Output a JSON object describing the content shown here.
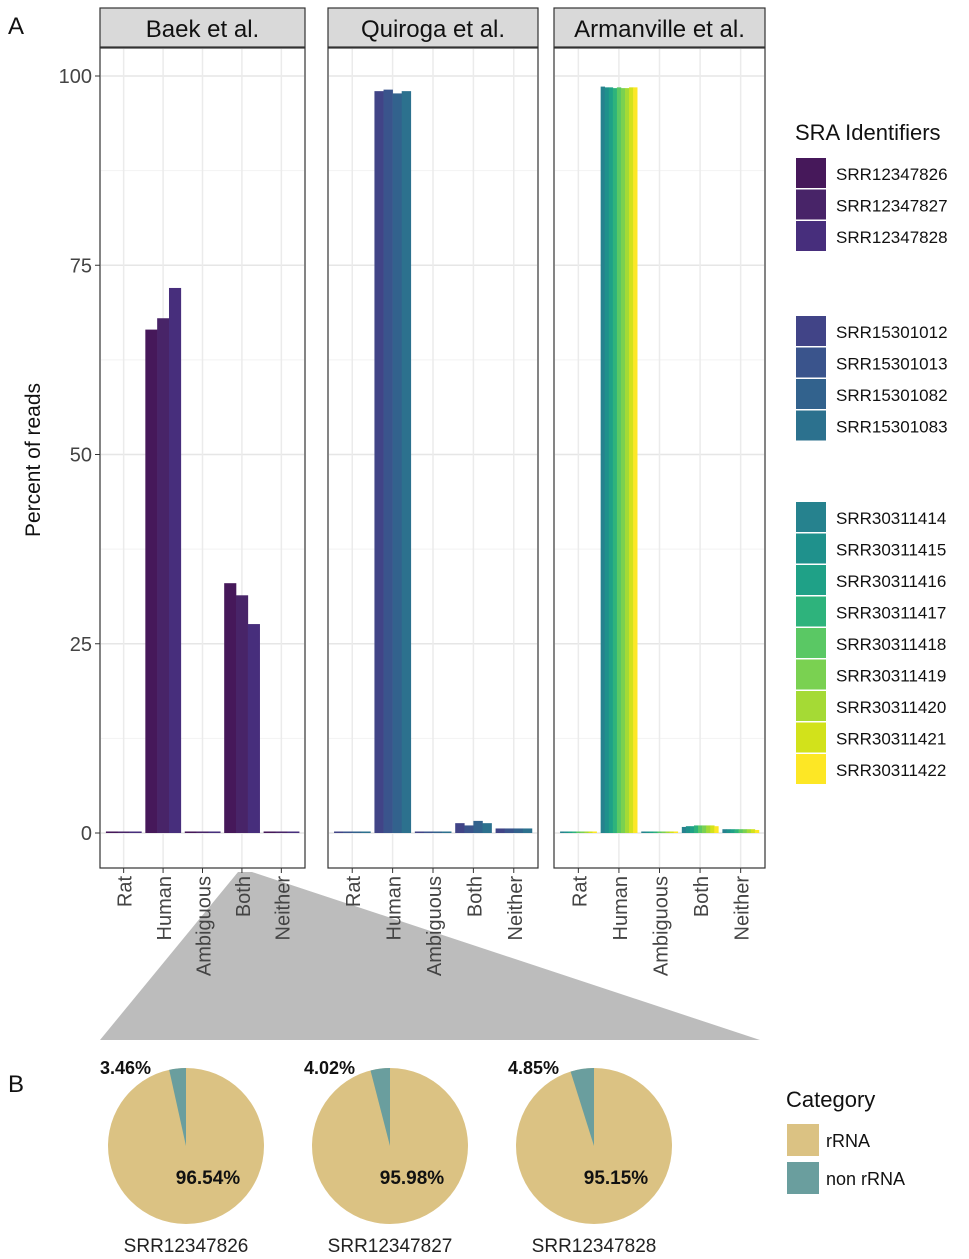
{
  "panel_labels": {
    "a": "A",
    "b": "B"
  },
  "chart_data": [
    {
      "type": "bar",
      "ylabel": "Percent of reads",
      "ylim": [
        0,
        100
      ],
      "yticks": [
        0,
        25,
        50,
        75,
        100
      ],
      "categories": [
        "Rat",
        "Human",
        "Ambiguous",
        "Both",
        "Neither"
      ],
      "grid": true,
      "legend": {
        "title": "SRA Identifiers",
        "placement": "right"
      },
      "facets": [
        {
          "title": "Baek et al.",
          "series": [
            {
              "name": "SRR12347826",
              "color": "#46185a",
              "values": [
                0.2,
                66.5,
                0.2,
                33.0,
                0.2
              ]
            },
            {
              "name": "SRR12347827",
              "color": "#482468",
              "values": [
                0.1,
                68.0,
                0.2,
                31.4,
                0.2
              ]
            },
            {
              "name": "SRR12347828",
              "color": "#472e7c",
              "values": [
                0.1,
                72.0,
                0.2,
                27.6,
                0.1
              ]
            }
          ]
        },
        {
          "title": "Quiroga et al.",
          "series": [
            {
              "name": "SRR15301012",
              "color": "#414487",
              "values": [
                0.1,
                98.0,
                0.1,
                1.3,
                0.6
              ]
            },
            {
              "name": "SRR15301013",
              "color": "#3a548c",
              "values": [
                0.1,
                98.2,
                0.1,
                1.0,
                0.6
              ]
            },
            {
              "name": "SRR15301082",
              "color": "#32628d",
              "values": [
                0.1,
                97.7,
                0.1,
                1.6,
                0.6
              ]
            },
            {
              "name": "SRR15301083",
              "color": "#2c718e",
              "values": [
                0.1,
                98.0,
                0.1,
                1.3,
                0.6
              ]
            }
          ]
        },
        {
          "title": "Armanville et al.",
          "series": [
            {
              "name": "SRR30311414",
              "color": "#26828e",
              "values": [
                0.1,
                98.6,
                0.1,
                0.8,
                0.5
              ]
            },
            {
              "name": "SRR30311415",
              "color": "#1f918c",
              "values": [
                0.1,
                98.5,
                0.1,
                0.9,
                0.5
              ]
            },
            {
              "name": "SRR30311416",
              "color": "#1fa187",
              "values": [
                0.1,
                98.5,
                0.1,
                0.9,
                0.5
              ]
            },
            {
              "name": "SRR30311417",
              "color": "#2eb37c",
              "values": [
                0.1,
                98.4,
                0.1,
                1.0,
                0.5
              ]
            },
            {
              "name": "SRR30311418",
              "color": "#5ac864",
              "values": [
                0.1,
                98.5,
                0.1,
                1.0,
                0.5
              ]
            },
            {
              "name": "SRR30311419",
              "color": "#7ad151",
              "values": [
                0.1,
                98.4,
                0.1,
                1.0,
                0.5
              ]
            },
            {
              "name": "SRR30311420",
              "color": "#a5da35",
              "values": [
                0.1,
                98.4,
                0.1,
                1.0,
                0.5
              ]
            },
            {
              "name": "SRR30311421",
              "color": "#d2e21b",
              "values": [
                0.1,
                98.5,
                0.1,
                1.0,
                0.5
              ]
            },
            {
              "name": "SRR30311422",
              "color": "#fde725",
              "values": [
                0.1,
                98.5,
                0.1,
                0.9,
                0.4
              ]
            }
          ]
        }
      ]
    },
    {
      "type": "pie",
      "legend": {
        "title": "Category",
        "placement": "right",
        "entries": [
          {
            "name": "rRNA",
            "color": "#dbc283"
          },
          {
            "name": "non rRNA",
            "color": "#6a9e9e"
          }
        ]
      },
      "pies": [
        {
          "label": "SRR12347826",
          "rRNA": 96.54,
          "non_rRNA": 3.46,
          "rRNA_label": "96.54%",
          "non_rRNA_label": "3.46%"
        },
        {
          "label": "SRR12347827",
          "rRNA": 95.98,
          "non_rRNA": 4.02,
          "rRNA_label": "95.98%",
          "non_rRNA_label": "4.02%"
        },
        {
          "label": "SRR12347828",
          "rRNA": 95.15,
          "non_rRNA": 4.85,
          "rRNA_label": "95.15%",
          "non_rRNA_label": "4.85%"
        }
      ]
    }
  ]
}
